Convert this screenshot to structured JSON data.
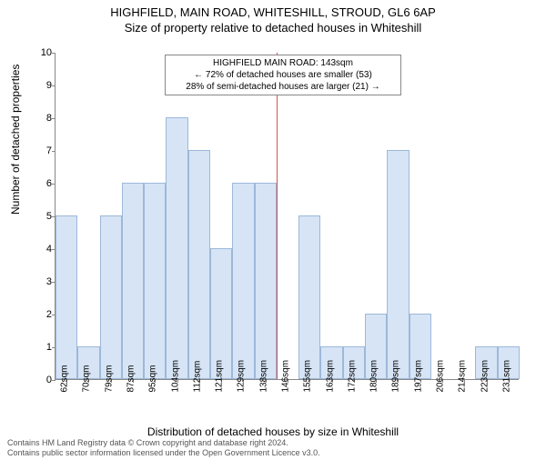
{
  "title": "HIGHFIELD, MAIN ROAD, WHITESHILL, STROUD, GL6 6AP",
  "subtitle": "Size of property relative to detached houses in Whiteshill",
  "ylabel": "Number of detached properties",
  "xlabel": "Distribution of detached houses by size in Whiteshill",
  "chart": {
    "type": "bar",
    "x_labels": [
      "62sqm",
      "70sqm",
      "79sqm",
      "87sqm",
      "95sqm",
      "104sqm",
      "112sqm",
      "121sqm",
      "129sqm",
      "138sqm",
      "146sqm",
      "155sqm",
      "163sqm",
      "172sqm",
      "180sqm",
      "189sqm",
      "197sqm",
      "206sqm",
      "214sqm",
      "223sqm",
      "231sqm"
    ],
    "values": [
      5,
      1,
      5,
      6,
      6,
      8,
      7,
      4,
      6,
      6,
      0,
      5,
      1,
      1,
      2,
      7,
      2,
      0,
      0,
      1,
      1
    ],
    "ylim": [
      0,
      10
    ],
    "ytick_step": 1,
    "bar_fill": "#d6e4f5",
    "bar_stroke": "#9db8d9",
    "background_color": "#ffffff",
    "axis_color": "#888888",
    "label_fontsize": 12,
    "tick_fontsize": 11,
    "xtick_fontsize": 10,
    "bar_width_ratio": 1.0,
    "highlight_index_between": [
      9,
      10
    ],
    "highlight_color": "#d9534f"
  },
  "annotation": {
    "line1": "HIGHFIELD MAIN ROAD: 143sqm",
    "line2": "← 72% of detached houses are smaller (53)",
    "line3": "28% of semi-detached houses are larger (21) →"
  },
  "attribution": {
    "line1": "Contains HM Land Registry data © Crown copyright and database right 2024.",
    "line2": "Contains public sector information licensed under the Open Government Licence v3.0."
  }
}
